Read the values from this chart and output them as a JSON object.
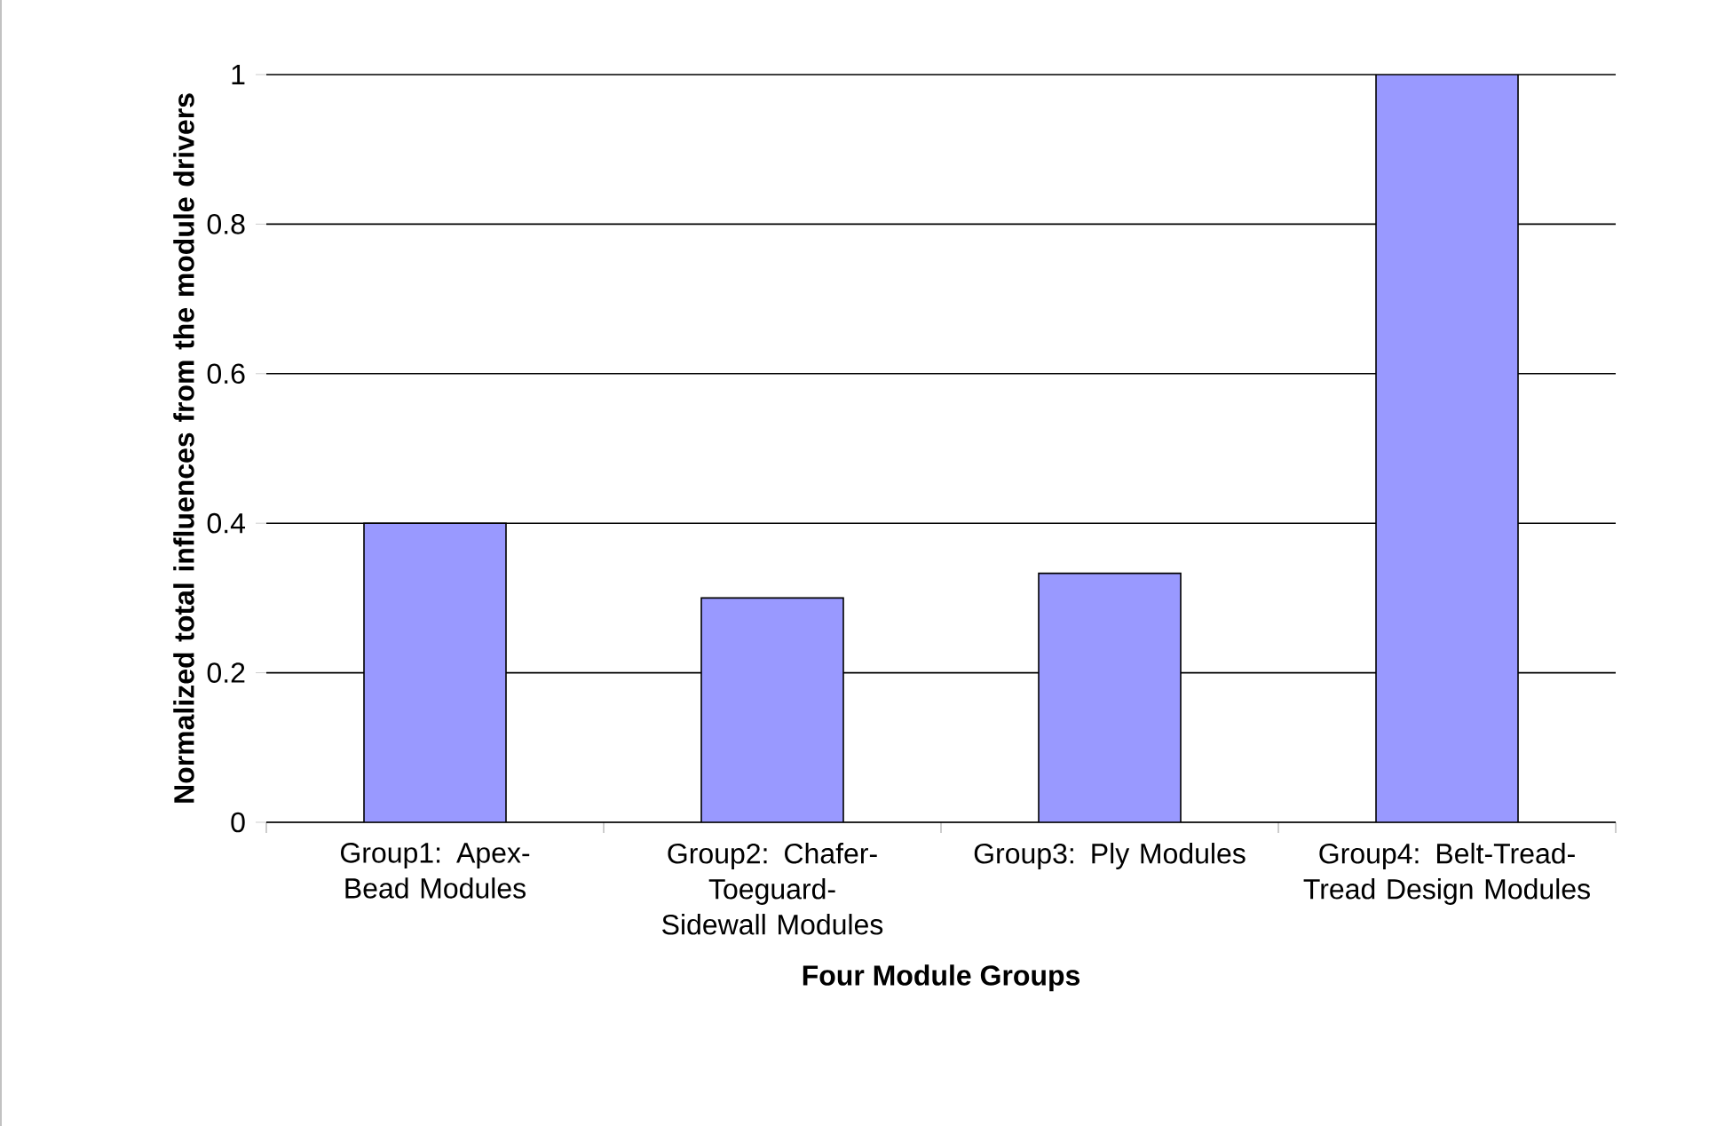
{
  "chart_data": {
    "type": "bar",
    "xlabel": "Four Module Groups",
    "ylabel": "Normalized total influences from the module drivers",
    "categories": [
      "Group1: Apex-Bead Modules",
      "Group2: Chafer-Toeguard-Sidewall Modules",
      "Group3: Ply Modules",
      "Group4: Belt-Tread-Tread Design Modules"
    ],
    "values": [
      0.4,
      0.3,
      0.333,
      1.0
    ],
    "color": "#9999ff",
    "ylim": [
      0,
      1
    ],
    "yticks": [
      0,
      0.2,
      0.4,
      0.6,
      0.8,
      1
    ],
    "grid": "y"
  }
}
